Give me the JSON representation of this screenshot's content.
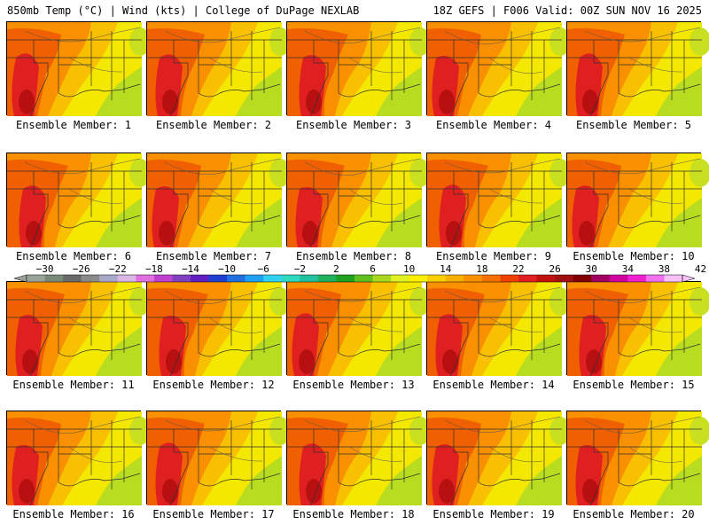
{
  "header": {
    "left": "850mb Temp (°C) | Wind (kts) | College of DuPage NEXLAB",
    "right": "18Z GEFS | F006 Valid: 00Z SUN NOV 16 2025"
  },
  "panels": [
    {
      "label": "Ensemble Member: 1"
    },
    {
      "label": "Ensemble Member: 2"
    },
    {
      "label": "Ensemble Member: 3"
    },
    {
      "label": "Ensemble Member: 4"
    },
    {
      "label": "Ensemble Member: 5"
    },
    {
      "label": "Ensemble Member: 6"
    },
    {
      "label": "Ensemble Member: 7"
    },
    {
      "label": "Ensemble Member: 8"
    },
    {
      "label": "Ensemble Member: 9"
    },
    {
      "label": "Ensemble Member: 10"
    },
    {
      "label": "Ensemble Member: 11"
    },
    {
      "label": "Ensemble Member: 12"
    },
    {
      "label": "Ensemble Member: 13"
    },
    {
      "label": "Ensemble Member: 14"
    },
    {
      "label": "Ensemble Member: 15"
    },
    {
      "label": "Ensemble Member: 16"
    },
    {
      "label": "Ensemble Member: 17"
    },
    {
      "label": "Ensemble Member: 18"
    },
    {
      "label": "Ensemble Member: 19"
    },
    {
      "label": "Ensemble Member: 20"
    }
  ],
  "colorbar": {
    "tick_labels": [
      "−30",
      "−26",
      "−22",
      "−18",
      "−14",
      "−10",
      "−6",
      "−2",
      "2",
      "6",
      "10",
      "14",
      "18",
      "22",
      "26",
      "30",
      "34",
      "38",
      "42"
    ],
    "colors": [
      "#9aa39a",
      "#7a8a7a",
      "#6a6a6a",
      "#8a8a8a",
      "#a8a8c8",
      "#d9b8e8",
      "#e070e0",
      "#c040d0",
      "#8040c0",
      "#6020c0",
      "#2040d0",
      "#2070e0",
      "#20a0f0",
      "#30d0f0",
      "#30d8c0",
      "#20c0a0",
      "#20b060",
      "#20a020",
      "#60c020",
      "#a8d820",
      "#e0f020",
      "#f8f000",
      "#f8d000",
      "#f8b000",
      "#f89000",
      "#f87000",
      "#f04000",
      "#e02020",
      "#c01010",
      "#a01010",
      "#800000",
      "#a00060",
      "#d000a0",
      "#f020d0",
      "#f070f0",
      "#f8c0f8"
    ]
  }
}
